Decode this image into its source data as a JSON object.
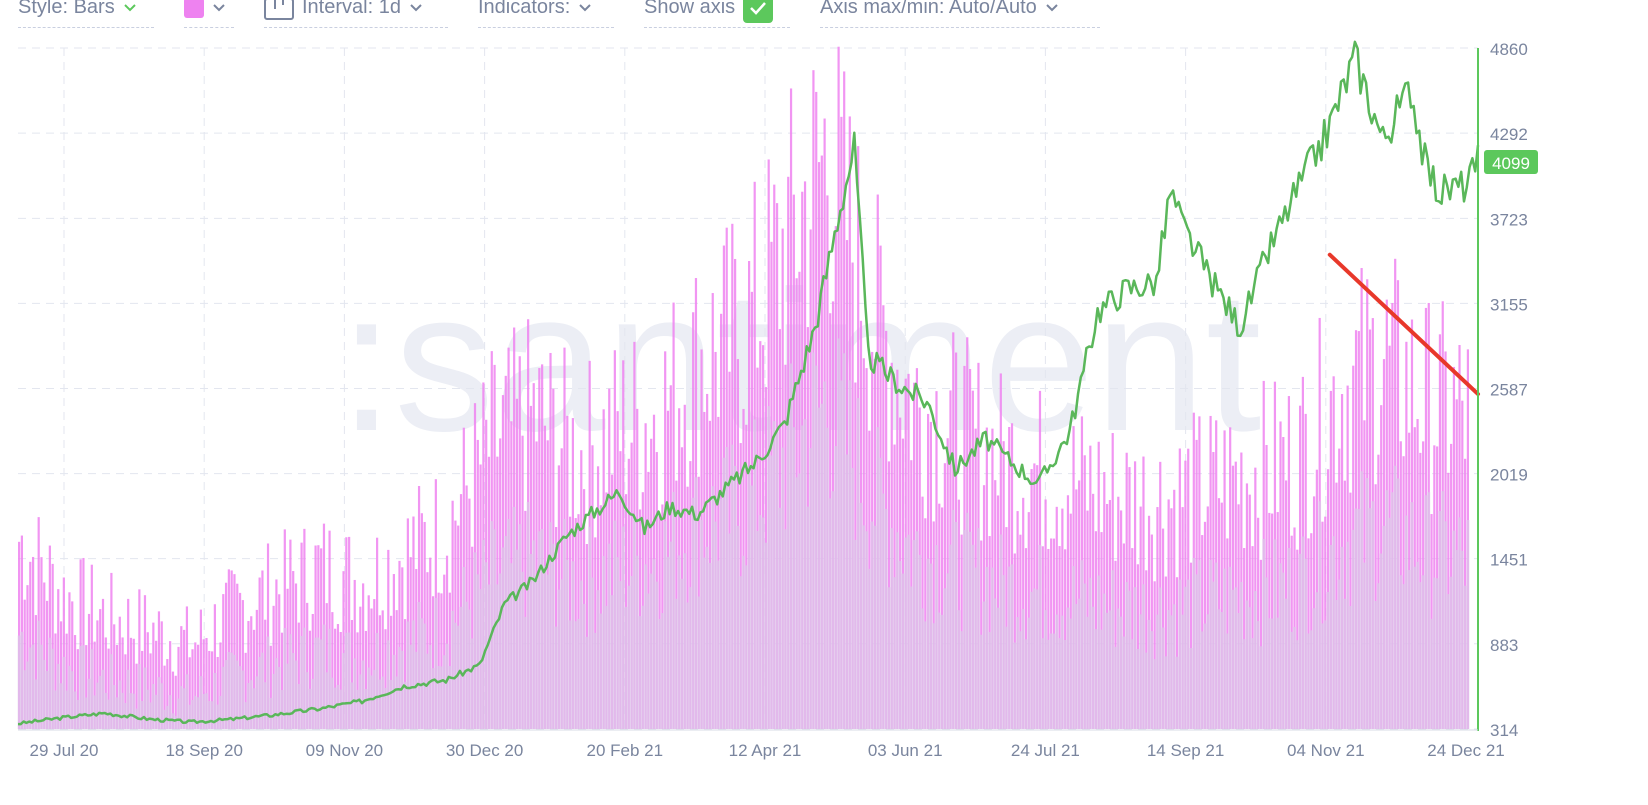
{
  "toolbar": {
    "style_label": "Style: Bars",
    "interval_label": "Interval: 1d",
    "indicators_label": "Indicators:",
    "show_axis_label": "Show axis",
    "axis_maxmin_label": "Axis max/min: Auto/Auto"
  },
  "colors": {
    "accent": "#5cc85c",
    "bars": "#ee82f0",
    "bars_fill": "#dcc9e8",
    "price_line": "#5ab75a",
    "trend_line": "#e8382a",
    "grid": "#e3e6ef",
    "axis_text": "#7a859e"
  },
  "watermark": ":santiment",
  "chart_data": {
    "type": "bar",
    "title": "",
    "x_range": [
      "2020-07-20",
      "2021-12-24"
    ],
    "x_tick_labels": [
      "29 Jul 20",
      "18 Sep 20",
      "09 Nov 20",
      "30 Dec 20",
      "20 Feb 21",
      "12 Apr 21",
      "03 Jun 21",
      "24 Jul 21",
      "14 Sep 21",
      "04 Nov 21",
      "24 Dec 21"
    ],
    "y_ticks": [
      314,
      883,
      1451,
      2019,
      2587,
      3155,
      3723,
      4292,
      4860
    ],
    "ylim": [
      314,
      4860
    ],
    "current_value_label": "4099",
    "grid": true,
    "series": [
      {
        "type": "bar",
        "x": [
          "2020-07-20",
          "2020-08-05",
          "2020-08-20",
          "2020-09-05",
          "2020-09-20",
          "2020-10-05",
          "2020-10-20",
          "2020-11-05",
          "2020-11-20",
          "2020-12-05",
          "2020-12-20",
          "2021-01-05",
          "2021-01-20",
          "2021-02-05",
          "2021-02-20",
          "2021-03-05",
          "2021-03-20",
          "2021-04-05",
          "2021-04-20",
          "2021-05-05",
          "2021-05-20",
          "2021-06-05",
          "2021-06-20",
          "2021-07-05",
          "2021-07-20",
          "2021-08-05",
          "2021-08-20",
          "2021-09-05",
          "2021-09-20",
          "2021-10-05",
          "2021-10-20",
          "2021-11-05",
          "2021-11-20",
          "2021-12-05",
          "2021-12-20"
        ],
        "values": [
          1700,
          1300,
          1150,
          1050,
          950,
          1200,
          1350,
          1500,
          1400,
          1600,
          1800,
          2400,
          2600,
          2300,
          2500,
          2600,
          3000,
          3200,
          3800,
          4500,
          3400,
          2700,
          2500,
          2300,
          2200,
          2100,
          2000,
          2000,
          2100,
          2200,
          2300,
          2800,
          3000,
          2700,
          2600
        ]
      },
      {
        "type": "line",
        "x": [
          "2020-07-20",
          "2020-08-05",
          "2020-08-20",
          "2020-09-05",
          "2020-09-20",
          "2020-10-05",
          "2020-10-20",
          "2020-11-05",
          "2020-11-20",
          "2020-12-05",
          "2020-12-20",
          "2021-01-01",
          "2021-01-10",
          "2021-01-20",
          "2021-02-01",
          "2021-02-10",
          "2021-02-20",
          "2021-03-01",
          "2021-03-10",
          "2021-03-20",
          "2021-04-01",
          "2021-04-10",
          "2021-04-20",
          "2021-05-01",
          "2021-05-10",
          "2021-05-15",
          "2021-05-20",
          "2021-06-01",
          "2021-06-10",
          "2021-06-20",
          "2021-07-01",
          "2021-07-10",
          "2021-07-20",
          "2021-07-31",
          "2021-08-10",
          "2021-08-20",
          "2021-08-31",
          "2021-09-05",
          "2021-09-10",
          "2021-09-20",
          "2021-09-30",
          "2021-10-10",
          "2021-10-20",
          "2021-10-31",
          "2021-11-10",
          "2021-11-20",
          "2021-11-30",
          "2021-12-05",
          "2021-12-10",
          "2021-12-20",
          "2021-12-24"
        ],
        "values": [
          350,
          390,
          420,
          380,
          360,
          380,
          410,
          450,
          500,
          600,
          640,
          740,
          1150,
          1300,
          1600,
          1750,
          1900,
          1650,
          1800,
          1750,
          1950,
          2100,
          2350,
          3000,
          3800,
          4200,
          2800,
          2600,
          2500,
          2050,
          2250,
          2100,
          1950,
          2300,
          3100,
          3250,
          3300,
          3900,
          3650,
          3300,
          3000,
          3500,
          3900,
          4300,
          4800,
          4250,
          4600,
          4100,
          3900,
          3950,
          4099
        ]
      }
    ],
    "annotations": [
      {
        "type": "trend-line",
        "x": [
          "2021-11-01",
          "2021-12-24"
        ],
        "y": [
          3480,
          2550
        ]
      }
    ]
  }
}
